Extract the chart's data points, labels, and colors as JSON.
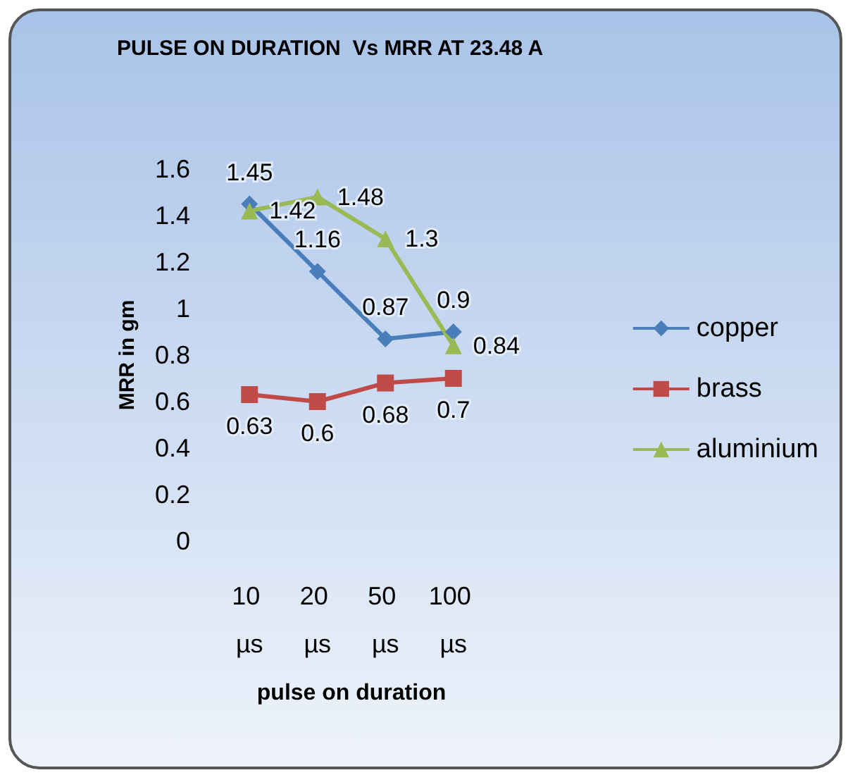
{
  "chart_data": {
    "type": "line",
    "title": "PULSE ON DURATION  Vs MRR AT 23.48 A",
    "xlabel": "pulse on duration",
    "ylabel": "MRR in gm",
    "categories": [
      "10 µs",
      "20 µs",
      "50 µs",
      "100 µs"
    ],
    "series": [
      {
        "name": "copper",
        "color": "#4a7ebb",
        "marker": "diamond",
        "values": [
          1.45,
          1.16,
          0.87,
          0.9
        ]
      },
      {
        "name": "brass",
        "color": "#be4b48",
        "marker": "square",
        "values": [
          0.63,
          0.6,
          0.68,
          0.7
        ]
      },
      {
        "name": "aluminium",
        "color": "#98b954",
        "marker": "triangle",
        "values": [
          1.42,
          1.48,
          1.3,
          0.84
        ]
      }
    ],
    "ylim": [
      0,
      1.6
    ],
    "yticks": [
      0,
      0.2,
      0.4,
      0.6,
      0.8,
      1,
      1.2,
      1.4,
      1.6
    ],
    "grid": false,
    "legend": "right",
    "data_labels": true
  }
}
